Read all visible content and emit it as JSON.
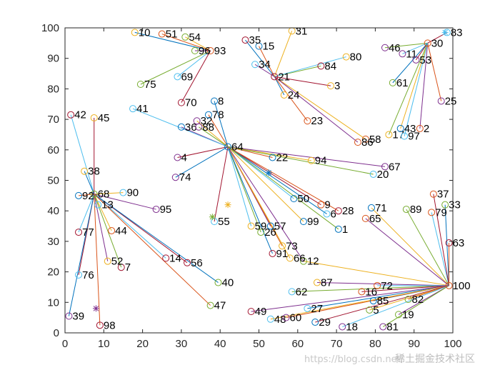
{
  "chart_data": {
    "type": "scatter",
    "title": "",
    "xlabel": "",
    "ylabel": "",
    "xlim": [
      0,
      100
    ],
    "ylim": [
      0,
      100
    ],
    "xticks": [
      0,
      10,
      20,
      30,
      40,
      50,
      60,
      70,
      80,
      90,
      100
    ],
    "yticks": [
      0,
      10,
      20,
      30,
      40,
      50,
      60,
      70,
      80,
      90,
      100
    ],
    "grid": false,
    "points": [
      {
        "id": "1",
        "x": 70.5,
        "y": 34
      },
      {
        "id": "2",
        "x": 91.5,
        "y": 67
      },
      {
        "id": "3",
        "x": 68.5,
        "y": 81
      },
      {
        "id": "4",
        "x": 29,
        "y": 57.5
      },
      {
        "id": "5",
        "x": 78.5,
        "y": 7.5
      },
      {
        "id": "6",
        "x": 67.5,
        "y": 39
      },
      {
        "id": "7",
        "x": 14.5,
        "y": 21.5
      },
      {
        "id": "8",
        "x": 38.5,
        "y": 76
      },
      {
        "id": "9",
        "x": 66,
        "y": 42
      },
      {
        "id": "10",
        "x": 18,
        "y": 98.5
      },
      {
        "id": "11",
        "x": 87,
        "y": 91.5
      },
      {
        "id": "12",
        "x": 61.5,
        "y": 23.5
      },
      {
        "id": "13",
        "x": 8.5,
        "y": 42
      },
      {
        "id": "14",
        "x": 26,
        "y": 24.5
      },
      {
        "id": "15",
        "x": 50,
        "y": 94
      },
      {
        "id": "16",
        "x": 76.5,
        "y": 13.5
      },
      {
        "id": "17",
        "x": 83.5,
        "y": 65
      },
      {
        "id": "18",
        "x": 71.5,
        "y": 2
      },
      {
        "id": "19",
        "x": 86,
        "y": 6
      },
      {
        "id": "20",
        "x": 79.5,
        "y": 52
      },
      {
        "id": "21",
        "x": 54,
        "y": 84
      },
      {
        "id": "22",
        "x": 53.5,
        "y": 57.5
      },
      {
        "id": "23",
        "x": 62.5,
        "y": 69.5
      },
      {
        "id": "24",
        "x": 56.5,
        "y": 78
      },
      {
        "id": "25",
        "x": 97,
        "y": 76
      },
      {
        "id": "26",
        "x": 50.5,
        "y": 33
      },
      {
        "id": "27",
        "x": 62.5,
        "y": 8
      },
      {
        "id": "28",
        "x": 70.5,
        "y": 40
      },
      {
        "id": "29",
        "x": 64.5,
        "y": 3.5
      },
      {
        "id": "30",
        "x": 93.5,
        "y": 95
      },
      {
        "id": "31",
        "x": 58.5,
        "y": 99
      },
      {
        "id": "32",
        "x": 34,
        "y": 69.5
      },
      {
        "id": "33",
        "x": 98,
        "y": 42
      },
      {
        "id": "34",
        "x": 49,
        "y": 88
      },
      {
        "id": "35",
        "x": 46.5,
        "y": 96
      },
      {
        "id": "36",
        "x": 30,
        "y": 67.5
      },
      {
        "id": "37",
        "x": 95,
        "y": 45.5
      },
      {
        "id": "38",
        "x": 5,
        "y": 53
      },
      {
        "id": "39",
        "x": 1,
        "y": 5.5
      },
      {
        "id": "40",
        "x": 39.5,
        "y": 16.5
      },
      {
        "id": "41",
        "x": 17.5,
        "y": 73.5
      },
      {
        "id": "42",
        "x": 1.5,
        "y": 71.5
      },
      {
        "id": "43",
        "x": 86.5,
        "y": 67
      },
      {
        "id": "44",
        "x": 12,
        "y": 33.5
      },
      {
        "id": "45",
        "x": 7.5,
        "y": 70.5
      },
      {
        "id": "46",
        "x": 82.5,
        "y": 93.5
      },
      {
        "id": "47",
        "x": 37.5,
        "y": 9
      },
      {
        "id": "48",
        "x": 53,
        "y": 4.5
      },
      {
        "id": "49",
        "x": 48,
        "y": 7
      },
      {
        "id": "50",
        "x": 59,
        "y": 44
      },
      {
        "id": "51",
        "x": 25,
        "y": 98
      },
      {
        "id": "52",
        "x": 11,
        "y": 23.5
      },
      {
        "id": "53",
        "x": 90.5,
        "y": 89.5
      },
      {
        "id": "54",
        "x": 31,
        "y": 97
      },
      {
        "id": "55",
        "x": 38.5,
        "y": 36.5
      },
      {
        "id": "56",
        "x": 31.5,
        "y": 23
      },
      {
        "id": "57",
        "x": 53,
        "y": 35
      },
      {
        "id": "58",
        "x": 77.5,
        "y": 63.5
      },
      {
        "id": "59",
        "x": 48,
        "y": 35
      },
      {
        "id": "60",
        "x": 57,
        "y": 5
      },
      {
        "id": "61",
        "x": 84.5,
        "y": 82
      },
      {
        "id": "62",
        "x": 58.5,
        "y": 13.5
      },
      {
        "id": "63",
        "x": 99,
        "y": 29.5
      },
      {
        "id": "64",
        "x": 42,
        "y": 61
      },
      {
        "id": "65",
        "x": 77.5,
        "y": 37.5
      },
      {
        "id": "66",
        "x": 58,
        "y": 24.5
      },
      {
        "id": "67",
        "x": 82.5,
        "y": 54.5
      },
      {
        "id": "68",
        "x": 7.5,
        "y": 45.5
      },
      {
        "id": "69",
        "x": 29,
        "y": 84
      },
      {
        "id": "70",
        "x": 30,
        "y": 75.5
      },
      {
        "id": "71",
        "x": 79,
        "y": 41
      },
      {
        "id": "72",
        "x": 80.5,
        "y": 15.5
      },
      {
        "id": "73",
        "x": 56,
        "y": 28.5
      },
      {
        "id": "74",
        "x": 28.5,
        "y": 51
      },
      {
        "id": "75",
        "x": 19.5,
        "y": 81.5
      },
      {
        "id": "76",
        "x": 3.5,
        "y": 19
      },
      {
        "id": "77",
        "x": 3.5,
        "y": 33
      },
      {
        "id": "78",
        "x": 37,
        "y": 71.5
      },
      {
        "id": "79",
        "x": 94.5,
        "y": 39.5
      },
      {
        "id": "80",
        "x": 72.5,
        "y": 90.5
      },
      {
        "id": "81",
        "x": 82,
        "y": 2
      },
      {
        "id": "82",
        "x": 88.5,
        "y": 11
      },
      {
        "id": "83",
        "x": 98.5,
        "y": 98.5
      },
      {
        "id": "84",
        "x": 66,
        "y": 87.5
      },
      {
        "id": "85",
        "x": 79.5,
        "y": 10.5
      },
      {
        "id": "86",
        "x": 75.5,
        "y": 62.5
      },
      {
        "id": "87",
        "x": 65,
        "y": 16.5
      },
      {
        "id": "88",
        "x": 34.5,
        "y": 67.5
      },
      {
        "id": "89",
        "x": 88,
        "y": 40.5
      },
      {
        "id": "90",
        "x": 15,
        "y": 46
      },
      {
        "id": "91",
        "x": 53.5,
        "y": 26
      },
      {
        "id": "92",
        "x": 3.5,
        "y": 45
      },
      {
        "id": "93",
        "x": 37.5,
        "y": 92.5
      },
      {
        "id": "94",
        "x": 63.5,
        "y": 56.5
      },
      {
        "id": "95",
        "x": 23.5,
        "y": 40.5
      },
      {
        "id": "96",
        "x": 33.5,
        "y": 92.5
      },
      {
        "id": "97",
        "x": 87.5,
        "y": 64.5
      },
      {
        "id": "98",
        "x": 9,
        "y": 2.5
      },
      {
        "id": "99",
        "x": 61.5,
        "y": 36.5
      },
      {
        "id": "100",
        "x": 99,
        "y": 15.5
      }
    ],
    "centers": [
      {
        "x": 8,
        "y": 8,
        "color": "#7e2f8e"
      },
      {
        "x": 38,
        "y": 38,
        "color": "#77ac30"
      },
      {
        "x": 42,
        "y": 42,
        "color": "#edb120"
      },
      {
        "x": 52.5,
        "y": 52.5,
        "color": "#0072bd"
      },
      {
        "x": 98,
        "y": 98.5,
        "color": "#4dbeee"
      }
    ],
    "edges": [
      [
        "93",
        "10"
      ],
      [
        "93",
        "51"
      ],
      [
        "93",
        "54"
      ],
      [
        "93",
        "96"
      ],
      [
        "93",
        "75"
      ],
      [
        "93",
        "69"
      ],
      [
        "93",
        "70"
      ],
      [
        "21",
        "35"
      ],
      [
        "21",
        "15"
      ],
      [
        "21",
        "31"
      ],
      [
        "21",
        "34"
      ],
      [
        "21",
        "84"
      ],
      [
        "21",
        "80"
      ],
      [
        "21",
        "3"
      ],
      [
        "21",
        "24"
      ],
      [
        "21",
        "23"
      ],
      [
        "21",
        "58"
      ],
      [
        "21",
        "86"
      ],
      [
        "30",
        "46"
      ],
      [
        "30",
        "11"
      ],
      [
        "30",
        "53"
      ],
      [
        "30",
        "61"
      ],
      [
        "30",
        "25"
      ],
      [
        "30",
        "43"
      ],
      [
        "30",
        "2"
      ],
      [
        "30",
        "17"
      ],
      [
        "30",
        "97"
      ],
      [
        "30",
        "83"
      ],
      [
        "64",
        "8"
      ],
      [
        "64",
        "78"
      ],
      [
        "64",
        "32"
      ],
      [
        "64",
        "36"
      ],
      [
        "64",
        "88"
      ],
      [
        "64",
        "41"
      ],
      [
        "64",
        "4"
      ],
      [
        "64",
        "74"
      ],
      [
        "64",
        "22"
      ],
      [
        "64",
        "94"
      ],
      [
        "64",
        "67"
      ],
      [
        "64",
        "20"
      ],
      [
        "64",
        "50"
      ],
      [
        "64",
        "9"
      ],
      [
        "64",
        "6"
      ],
      [
        "64",
        "28"
      ],
      [
        "64",
        "99"
      ],
      [
        "64",
        "57"
      ],
      [
        "64",
        "26"
      ],
      [
        "64",
        "59"
      ],
      [
        "64",
        "55"
      ],
      [
        "64",
        "91"
      ],
      [
        "64",
        "73"
      ],
      [
        "64",
        "66"
      ],
      [
        "64",
        "12"
      ],
      [
        "64",
        "1"
      ],
      [
        "68",
        "42"
      ],
      [
        "68",
        "45"
      ],
      [
        "68",
        "38"
      ],
      [
        "68",
        "92"
      ],
      [
        "68",
        "90"
      ],
      [
        "68",
        "95"
      ],
      [
        "68",
        "13"
      ],
      [
        "68",
        "77"
      ],
      [
        "68",
        "76"
      ],
      [
        "68",
        "39"
      ],
      [
        "68",
        "98"
      ],
      [
        "68",
        "44"
      ],
      [
        "68",
        "52"
      ],
      [
        "68",
        "7"
      ],
      [
        "68",
        "14"
      ],
      [
        "68",
        "56"
      ],
      [
        "68",
        "40"
      ],
      [
        "68",
        "47"
      ],
      [
        "100",
        "71"
      ],
      [
        "100",
        "65"
      ],
      [
        "100",
        "89"
      ],
      [
        "100",
        "79"
      ],
      [
        "100",
        "37"
      ],
      [
        "100",
        "33"
      ],
      [
        "100",
        "63"
      ],
      [
        "100",
        "12"
      ],
      [
        "100",
        "87"
      ],
      [
        "100",
        "62"
      ],
      [
        "100",
        "72"
      ],
      [
        "100",
        "16"
      ],
      [
        "100",
        "85"
      ],
      [
        "100",
        "82"
      ],
      [
        "100",
        "5"
      ],
      [
        "100",
        "19"
      ],
      [
        "100",
        "81"
      ],
      [
        "100",
        "18"
      ],
      [
        "100",
        "29"
      ],
      [
        "100",
        "27"
      ],
      [
        "100",
        "60"
      ],
      [
        "100",
        "48"
      ],
      [
        "100",
        "49"
      ]
    ]
  },
  "watermark": {
    "url": "https://blog.csdn.net/",
    "site": "稀土掘金技术社区"
  }
}
